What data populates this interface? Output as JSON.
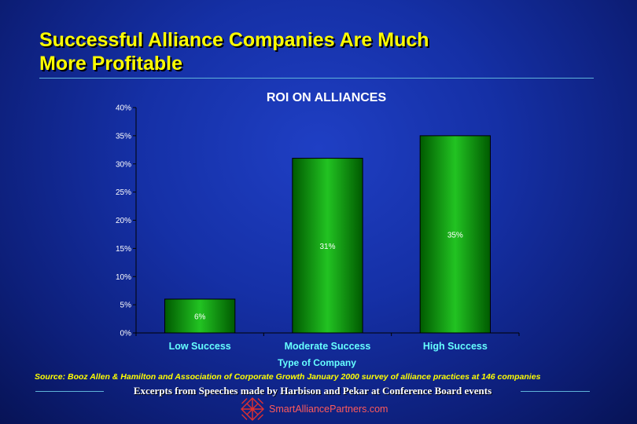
{
  "slide": {
    "title_line1": "Successful Alliance Companies Are Much",
    "title_line2": "More Profitable",
    "source": "Source:  Booz Allen & Hamilton and Association of Corporate Growth January 2000 survey of alliance practices at 146 companies",
    "excerpt": "Excerpts from Speeches made by Harbison and Pekar at Conference Board events",
    "brand": "SmartAlliancePartners.com"
  },
  "colors": {
    "title": "#ffff00",
    "bar_dark": "#005a00",
    "bar_light": "#22c322",
    "brand_text": "#ff5a5a",
    "logo": "#e03030"
  },
  "chart_data": {
    "type": "bar",
    "title": "ROI ON ALLIANCES",
    "xlabel": "Type of Company",
    "ylabel": "",
    "categories": [
      "Low Success",
      "Moderate Success",
      "High Success"
    ],
    "values": [
      6,
      31,
      35
    ],
    "value_labels": [
      "6%",
      "31%",
      "35%"
    ],
    "ylim": [
      0,
      40
    ],
    "yticks": [
      0,
      5,
      10,
      15,
      20,
      25,
      30,
      35,
      40
    ],
    "ytick_labels": [
      "0%",
      "5%",
      "10%",
      "15%",
      "20%",
      "25%",
      "30%",
      "35%",
      "40%"
    ],
    "grid": false,
    "legend": "none"
  }
}
